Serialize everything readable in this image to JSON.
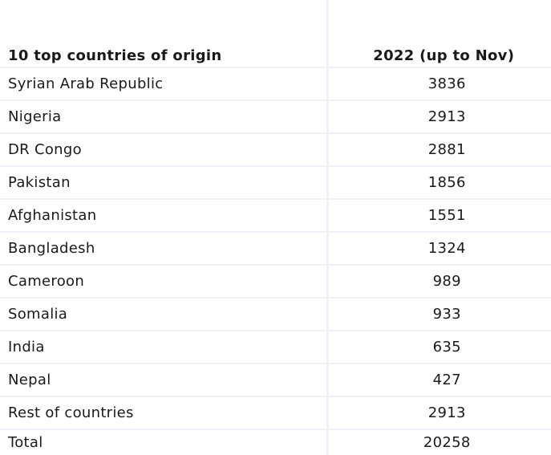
{
  "table": {
    "header": {
      "col1": "10 top countries of origin",
      "col2": "2022 (up to Nov)"
    },
    "rows": [
      {
        "country": "Syrian Arab Republic",
        "value": "3836"
      },
      {
        "country": "Nigeria",
        "value": "2913"
      },
      {
        "country": "DR Congo",
        "value": "2881"
      },
      {
        "country": "Pakistan",
        "value": "1856"
      },
      {
        "country": "Afghanistan",
        "value": "1551"
      },
      {
        "country": "Bangladesh",
        "value": "1324"
      },
      {
        "country": "Cameroon",
        "value": "989"
      },
      {
        "country": "Somalia",
        "value": "933"
      },
      {
        "country": "India",
        "value": "635"
      },
      {
        "country": "Nepal",
        "value": "427"
      },
      {
        "country": "Rest of countries",
        "value": "2913"
      },
      {
        "country": "Total",
        "value": "20258"
      }
    ]
  },
  "colors": {
    "grid_line": "#eef1f6",
    "text": "#1a1a1a"
  }
}
